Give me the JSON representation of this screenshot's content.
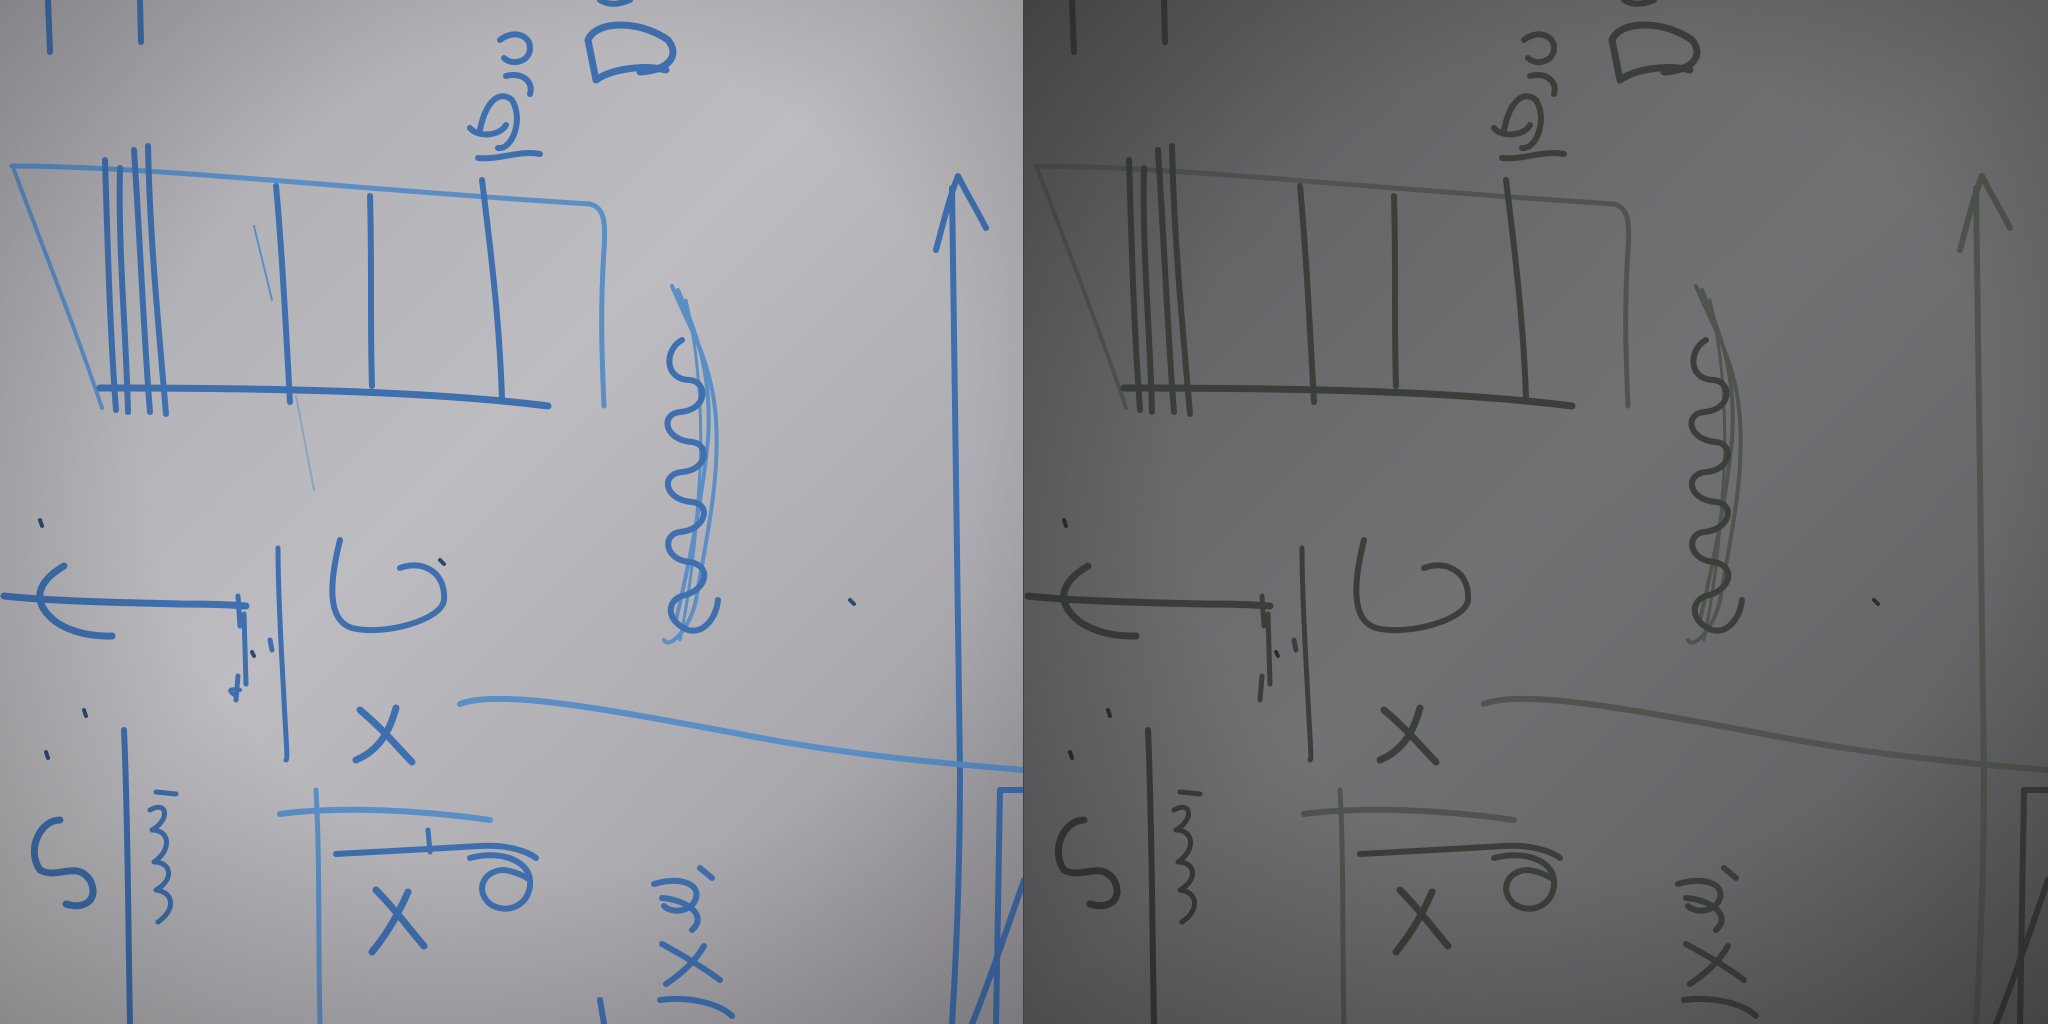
{
  "figure": {
    "left_panel": {
      "ink_color": "#3f6fae",
      "light_ink_color": "#5a8ec4",
      "board_color": "#b9b8bd"
    },
    "right_panel": {
      "ink_color": "#3b3f3a",
      "light_ink_color": "#4f554e",
      "board_color": "#6c6b6e"
    }
  }
}
